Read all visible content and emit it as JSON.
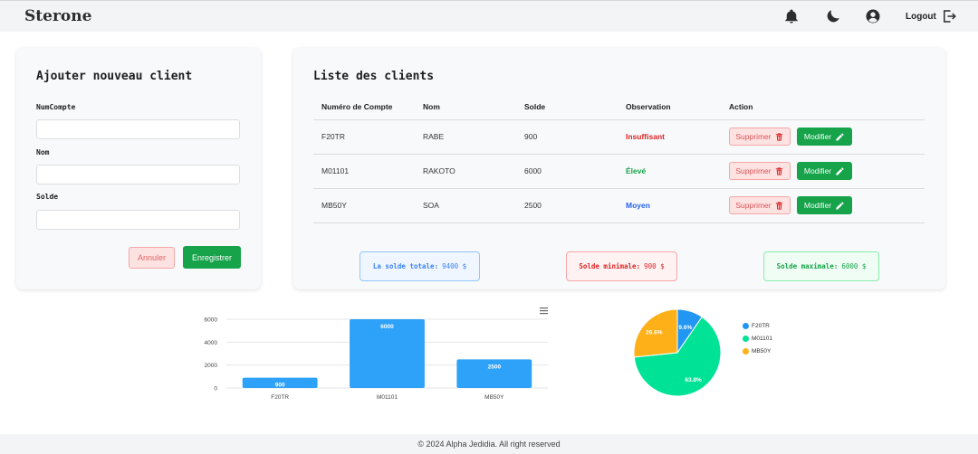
{
  "navbar": {
    "brand": "Sterone",
    "icons": [
      "bell-icon",
      "moon-icon",
      "user-circle-icon"
    ],
    "logout_label": "Logout"
  },
  "form": {
    "title": "Ajouter nouveau client",
    "fields": [
      {
        "label": "NumCompte",
        "value": "",
        "placeholder": ""
      },
      {
        "label": "Nom",
        "value": "",
        "placeholder": ""
      },
      {
        "label": "Solde",
        "value": "",
        "placeholder": ""
      }
    ],
    "cancel_label": "Annuler",
    "save_label": "Enregistrer"
  },
  "list": {
    "title": "Liste des clients",
    "columns": [
      "Numéro de Compte",
      "Nom",
      "Solde",
      "Observation",
      "Action"
    ],
    "rows": [
      {
        "compte": "F20TR",
        "nom": "RABE",
        "solde": "900",
        "observation": "Insuffisant",
        "obs_color": "#dc2626"
      },
      {
        "compte": "M01101",
        "nom": "RAKOTO",
        "solde": "6000",
        "observation": "Élevé",
        "obs_color": "#16a34a"
      },
      {
        "compte": "MB50Y",
        "nom": "SOA",
        "solde": "2500",
        "observation": "Moyen",
        "obs_color": "#2563eb"
      }
    ],
    "delete_label": "Supprimer",
    "edit_label": "Modifier"
  },
  "stats": {
    "total_label": "La solde totale:",
    "total_value": "9400 $",
    "min_label": "Solde minimale:",
    "min_value": "900 $",
    "max_label": "Solde maximale:",
    "max_value": "6000 $"
  },
  "chart_data": [
    {
      "type": "bar",
      "categories": [
        "F20TR",
        "M01101",
        "MB50Y"
      ],
      "values": [
        900,
        6000,
        2500
      ],
      "data_labels": [
        "900",
        "6000",
        "2500"
      ],
      "yticks": [
        "6000",
        "4000",
        "2000",
        "0"
      ],
      "ylim": [
        0,
        6000
      ],
      "color": "#2ea1f8",
      "title": "",
      "xlabel": "",
      "ylabel": ""
    },
    {
      "type": "pie",
      "labels": [
        "F20TR",
        "M01101",
        "MB50Y"
      ],
      "values": [
        9.6,
        63.8,
        26.6
      ],
      "data_labels": [
        "9.6%",
        "63.8%",
        "26.6%"
      ],
      "colors": [
        "#2196f3",
        "#00e396",
        "#feb019"
      ],
      "legend": "right"
    }
  ],
  "footer": {
    "text": "© 2024 Alpha Jedidia. All right reserved"
  }
}
